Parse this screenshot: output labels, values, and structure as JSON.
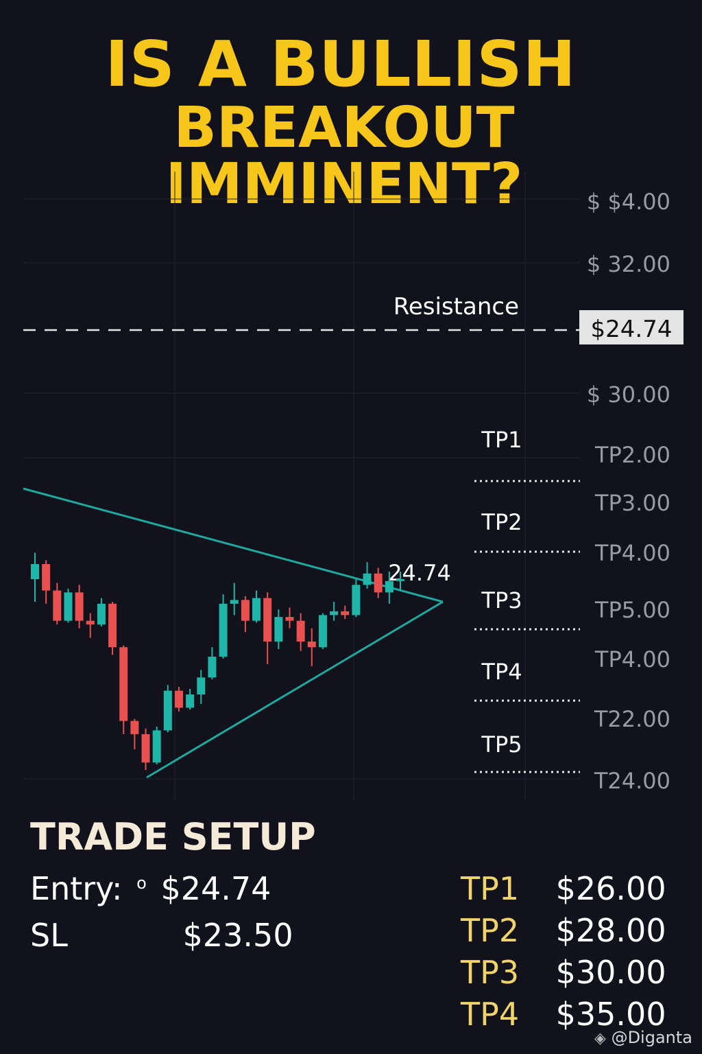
{
  "title": {
    "line1": "IS A BULLISH",
    "line2": "BREAKOUT IMMINENT?"
  },
  "chart_data": {
    "type": "candlestick",
    "price_axis_labels": [
      "$ $4.00",
      "$ 32.00",
      "$24.74",
      "$ 30.00",
      "TP2.00",
      "TP3.00",
      "TP4.00",
      "TP5.00",
      "TP4.00",
      "T22.00",
      "T24.00"
    ],
    "resistance": {
      "label": "Resistance",
      "value_label": "$24.74"
    },
    "apex_label": "24.74",
    "target_labels": [
      "TP1",
      "TP2",
      "TP3",
      "TP4",
      "TP5"
    ],
    "pattern": "symmetrical triangle",
    "candles": [
      {
        "o": 30.2,
        "h": 31.6,
        "l": 29.0,
        "c": 31.0
      },
      {
        "o": 31.0,
        "h": 31.2,
        "l": 28.9,
        "c": 29.6
      },
      {
        "o": 29.6,
        "h": 30.0,
        "l": 27.8,
        "c": 28.0
      },
      {
        "o": 28.0,
        "h": 29.7,
        "l": 27.9,
        "c": 29.5
      },
      {
        "o": 29.5,
        "h": 29.9,
        "l": 27.6,
        "c": 28.0
      },
      {
        "o": 28.0,
        "h": 28.4,
        "l": 27.1,
        "c": 27.8
      },
      {
        "o": 27.8,
        "h": 29.2,
        "l": 27.7,
        "c": 28.9
      },
      {
        "o": 28.9,
        "h": 29.0,
        "l": 26.2,
        "c": 26.6
      },
      {
        "o": 26.6,
        "h": 26.7,
        "l": 22.0,
        "c": 22.7
      },
      {
        "o": 22.7,
        "h": 22.8,
        "l": 21.2,
        "c": 22.0
      },
      {
        "o": 22.0,
        "h": 22.3,
        "l": 20.1,
        "c": 20.5
      },
      {
        "o": 20.5,
        "h": 22.4,
        "l": 20.4,
        "c": 22.2
      },
      {
        "o": 22.2,
        "h": 24.6,
        "l": 22.1,
        "c": 24.3
      },
      {
        "o": 24.3,
        "h": 24.5,
        "l": 23.2,
        "c": 23.4
      },
      {
        "o": 23.4,
        "h": 24.4,
        "l": 23.3,
        "c": 24.1
      },
      {
        "o": 24.1,
        "h": 25.4,
        "l": 23.6,
        "c": 25.0
      },
      {
        "o": 25.0,
        "h": 26.6,
        "l": 24.9,
        "c": 26.1
      },
      {
        "o": 26.1,
        "h": 29.4,
        "l": 26.0,
        "c": 28.9
      },
      {
        "o": 28.9,
        "h": 30.0,
        "l": 28.3,
        "c": 29.1
      },
      {
        "o": 29.1,
        "h": 29.3,
        "l": 27.4,
        "c": 28.0
      },
      {
        "o": 28.0,
        "h": 29.6,
        "l": 27.9,
        "c": 29.2
      },
      {
        "o": 29.2,
        "h": 29.5,
        "l": 25.7,
        "c": 26.9
      },
      {
        "o": 26.9,
        "h": 28.6,
        "l": 26.5,
        "c": 28.2
      },
      {
        "o": 28.2,
        "h": 28.7,
        "l": 27.6,
        "c": 28.0
      },
      {
        "o": 28.0,
        "h": 28.4,
        "l": 26.4,
        "c": 26.9
      },
      {
        "o": 26.9,
        "h": 27.6,
        "l": 25.6,
        "c": 26.6
      },
      {
        "o": 26.6,
        "h": 28.4,
        "l": 26.5,
        "c": 28.3
      },
      {
        "o": 28.3,
        "h": 29.0,
        "l": 28.0,
        "c": 28.5
      },
      {
        "o": 28.5,
        "h": 28.8,
        "l": 28.1,
        "c": 28.3
      },
      {
        "o": 28.3,
        "h": 30.2,
        "l": 28.2,
        "c": 29.9
      },
      {
        "o": 29.9,
        "h": 31.1,
        "l": 29.7,
        "c": 30.5
      },
      {
        "o": 30.5,
        "h": 30.8,
        "l": 29.2,
        "c": 29.5
      },
      {
        "o": 29.5,
        "h": 30.6,
        "l": 28.9,
        "c": 30.1
      },
      {
        "o": 30.1,
        "h": 30.6,
        "l": 29.6,
        "c": 30.2
      }
    ]
  },
  "trade_setup": {
    "title": "TRADE SETUP",
    "entry_label": "Entry:",
    "entry_mark": "o",
    "entry_value": "$24.74",
    "sl_label": "SL",
    "sl_value": "$23.50",
    "targets": [
      {
        "label": "TP1",
        "value": "$26.00"
      },
      {
        "label": "TP2",
        "value": "$28.00"
      },
      {
        "label": "TP3",
        "value": "$30.00"
      },
      {
        "label": "TP4",
        "value": "$35.00"
      }
    ]
  },
  "watermark": {
    "icon": "binance-diamond-icon",
    "text": "@Diganta"
  },
  "colors": {
    "bg": "#12121c",
    "title": "#f6c61b",
    "bull": "#1fb5a8",
    "bear": "#e8514f",
    "trend": "#1fa89e",
    "tp_label": "#f0d36b"
  }
}
